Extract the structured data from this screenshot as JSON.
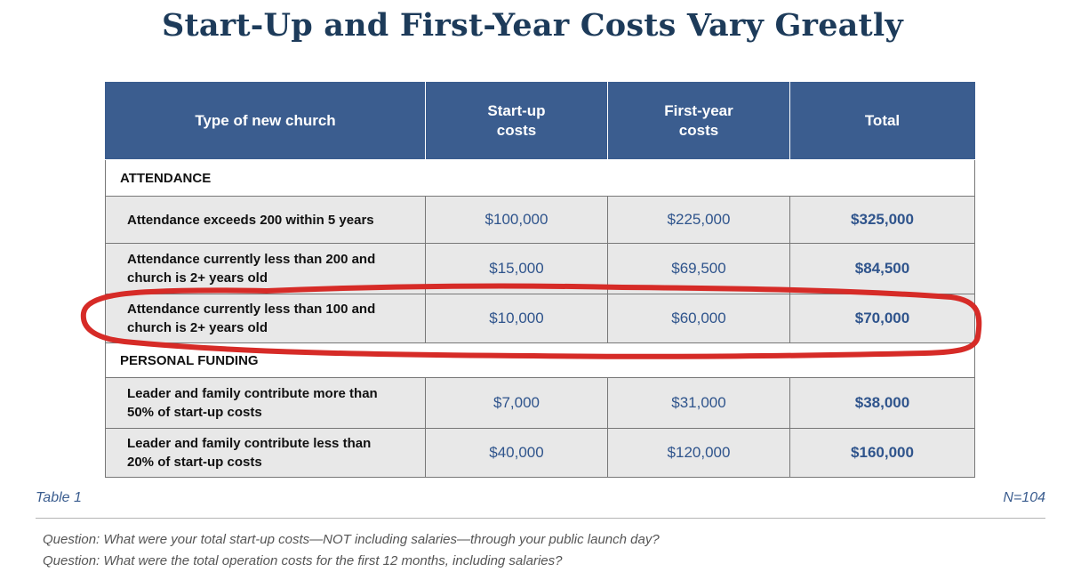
{
  "page": {
    "title": "Start-Up and First-Year Costs Vary Greatly"
  },
  "table": {
    "headers": {
      "type": "Type of new church",
      "startup_line1": "Start-up",
      "startup_line2": "costs",
      "firstyear_line1": "First-year",
      "firstyear_line2": "costs",
      "total": "Total"
    },
    "sections": [
      {
        "heading": "ATTENDANCE",
        "rows": [
          {
            "label_line1": "Attendance exceeds 200 within 5 years",
            "label_line2": "",
            "startup": "$100,000",
            "first_year": "$225,000",
            "total": "$325,000"
          },
          {
            "label_line1": "Attendance currently less than 200 and",
            "label_line2": "church is 2+ years old",
            "startup": "$15,000",
            "first_year": "$69,500",
            "total": "$84,500"
          },
          {
            "label_line1": "Attendance currently less than 100 and",
            "label_line2": "church is 2+ years old",
            "startup": "$10,000",
            "first_year": "$60,000",
            "total": "$70,000"
          }
        ]
      },
      {
        "heading": "PERSONAL FUNDING",
        "rows": [
          {
            "label_line1": "Leader and family contribute more than",
            "label_line2": "50% of start-up costs",
            "startup": "$7,000",
            "first_year": "$31,000",
            "total": "$38,000"
          },
          {
            "label_line1": "Leader and family contribute less than",
            "label_line2": "20% of start-up costs",
            "startup": "$40,000",
            "first_year": "$120,000",
            "total": "$160,000"
          }
        ]
      }
    ]
  },
  "footer": {
    "table_label": "Table 1",
    "sample_size": "N=104",
    "questions": [
      "Question: What were your total start-up costs—NOT including salaries—through your public launch day?",
      "Question: What were the total operation costs for the first 12 months, including salaries?"
    ]
  },
  "colors": {
    "header_bg": "#3b5d8f",
    "title": "#1d3b5a",
    "value_text": "#2f548c",
    "annotation_stroke": "#d62b27"
  }
}
